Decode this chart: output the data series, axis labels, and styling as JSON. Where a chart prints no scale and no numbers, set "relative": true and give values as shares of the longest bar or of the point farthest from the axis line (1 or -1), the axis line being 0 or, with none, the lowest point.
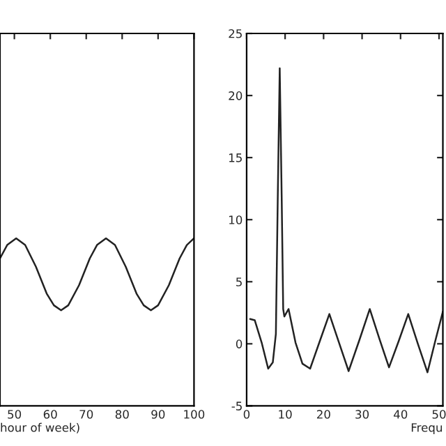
{
  "chart_data": [
    {
      "type": "line",
      "relative": true,
      "xlabel": "hour of week)",
      "tick_labels": "x",
      "xlim": [
        46,
        100
      ],
      "xticks": [
        50,
        60,
        70,
        80,
        90,
        100
      ],
      "grid": false,
      "legend": false,
      "x": [
        46,
        48,
        50.5,
        53,
        56,
        59,
        61,
        63,
        65,
        68,
        71,
        73,
        75.5,
        78,
        81,
        84,
        86,
        88,
        90,
        93,
        96,
        98,
        100
      ],
      "series": [
        {
          "color": "#222222",
          "values": [
            0.88,
            0.96,
            1.0,
            0.96,
            0.83,
            0.67,
            0.6,
            0.57,
            0.6,
            0.72,
            0.88,
            0.96,
            1.0,
            0.96,
            0.83,
            0.67,
            0.6,
            0.57,
            0.6,
            0.72,
            0.88,
            0.96,
            1.0
          ]
        }
      ]
    },
    {
      "type": "line",
      "xlabel": "Frequ",
      "xlim": [
        0,
        51
      ],
      "xticks": [
        0,
        10,
        20,
        30,
        40,
        50
      ],
      "ylim": [
        -5,
        25
      ],
      "yticks": [
        -5,
        0,
        5,
        10,
        15,
        20,
        25
      ],
      "grid": false,
      "legend": false,
      "x": [
        0.9,
        2.1,
        3.9,
        5.6,
        6.8,
        7.6,
        8.1,
        8.6,
        9.1,
        9.5,
        9.8,
        10.9,
        12.7,
        14.5,
        16.5,
        19,
        21.5,
        24,
        26.5,
        29.3,
        32,
        34.5,
        37,
        39.5,
        42,
        44.5,
        47,
        49,
        51
      ],
      "series": [
        {
          "color": "#222222",
          "values": [
            2.0,
            1.9,
            0.1,
            -2.0,
            -1.5,
            0.8,
            12,
            22.2,
            12,
            2.8,
            2.2,
            2.8,
            0.1,
            -1.6,
            -2.0,
            0.2,
            2.4,
            0.1,
            -2.2,
            0.3,
            2.8,
            0.4,
            -1.9,
            0.2,
            2.4,
            0.0,
            -2.3,
            0.2,
            2.6
          ]
        }
      ]
    }
  ]
}
